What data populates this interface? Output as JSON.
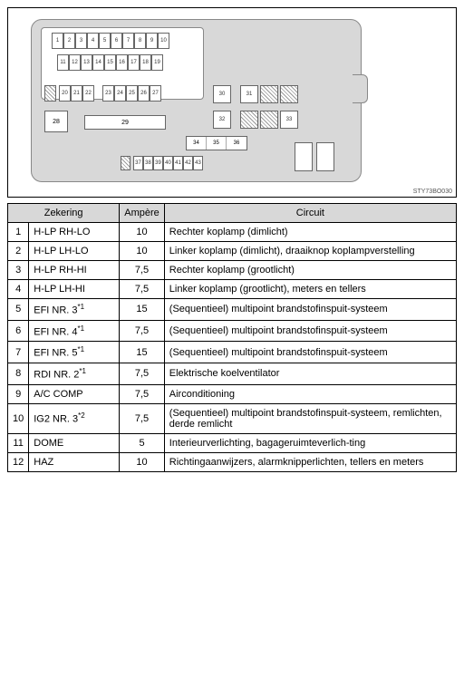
{
  "diagram": {
    "part_number": "STY73BO030",
    "row1": [
      "1",
      "2",
      "3",
      "4",
      "5",
      "6",
      "7",
      "8",
      "9",
      "10"
    ],
    "row2": [
      "11",
      "12",
      "13",
      "14",
      "15",
      "16",
      "17",
      "18",
      "19"
    ],
    "row3a": [
      "20",
      "21",
      "22"
    ],
    "row3b": [
      "23",
      "24",
      "25",
      "26",
      "27"
    ],
    "box28": "28",
    "box29": "29",
    "sq30": "30",
    "sq31": "31",
    "sq32": "32",
    "sq33": "33",
    "trip": [
      "34",
      "35",
      "36"
    ],
    "row_bottom": [
      "37",
      "38",
      "39",
      "40",
      "41",
      "42",
      "43"
    ]
  },
  "table": {
    "headers": {
      "fuse": "Zekering",
      "amp": "Ampère",
      "circuit": "Circuit"
    },
    "rows": [
      {
        "n": "1",
        "name": "H-LP RH-LO",
        "sup": "",
        "amp": "10",
        "circuit": "Rechter koplamp (dimlicht)"
      },
      {
        "n": "2",
        "name": "H-LP LH-LO",
        "sup": "",
        "amp": "10",
        "circuit": "Linker koplamp (dimlicht), draaiknop koplampverstelling"
      },
      {
        "n": "3",
        "name": "H-LP RH-HI",
        "sup": "",
        "amp": "7,5",
        "circuit": "Rechter koplamp (grootlicht)"
      },
      {
        "n": "4",
        "name": "H-LP LH-HI",
        "sup": "",
        "amp": "7,5",
        "circuit": "Linker koplamp (grootlicht), meters en tellers"
      },
      {
        "n": "5",
        "name": "EFI NR. 3",
        "sup": "*1",
        "amp": "15",
        "circuit": "(Sequentieel) multipoint brandstofinspuit-systeem"
      },
      {
        "n": "6",
        "name": "EFI NR. 4",
        "sup": "*1",
        "amp": "7,5",
        "circuit": "(Sequentieel) multipoint brandstofinspuit-systeem"
      },
      {
        "n": "7",
        "name": "EFI NR. 5",
        "sup": "*1",
        "amp": "15",
        "circuit": "(Sequentieel) multipoint brandstofinspuit-systeem"
      },
      {
        "n": "8",
        "name": "RDI NR. 2",
        "sup": "*1",
        "amp": "7,5",
        "circuit": "Elektrische koelventilator"
      },
      {
        "n": "9",
        "name": "A/C COMP",
        "sup": "",
        "amp": "7,5",
        "circuit": "Airconditioning"
      },
      {
        "n": "10",
        "name": "IG2 NR. 3",
        "sup": "*2",
        "amp": "7,5",
        "circuit": "(Sequentieel) multipoint brandstofinspuit-systeem, remlichten, derde remlicht"
      },
      {
        "n": "11",
        "name": "DOME",
        "sup": "",
        "amp": "5",
        "circuit": "Interieurverlichting, bagageruimteverlich-ting"
      },
      {
        "n": "12",
        "name": "HAZ",
        "sup": "",
        "amp": "10",
        "circuit": "Richtingaanwijzers, alarmknipperlichten, tellers en meters"
      }
    ]
  }
}
